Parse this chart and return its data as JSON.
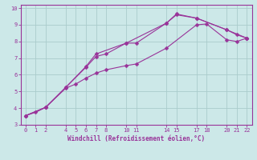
{
  "xlabel": "Windchill (Refroidissement éolien,°C)",
  "background_color": "#cce8e8",
  "grid_color": "#aacccc",
  "line_color": "#993399",
  "spine_color": "#993399",
  "xlim": [
    -0.5,
    22.5
  ],
  "ylim": [
    3.0,
    10.2
  ],
  "xticks": [
    0,
    1,
    2,
    4,
    5,
    6,
    7,
    8,
    10,
    11,
    14,
    15,
    17,
    18,
    20,
    21,
    22
  ],
  "yticks": [
    3,
    4,
    5,
    6,
    7,
    8,
    9,
    10
  ],
  "series": [
    {
      "x": [
        0,
        1,
        2,
        4,
        6,
        7,
        8,
        10,
        11,
        14,
        15,
        17,
        20,
        21,
        22
      ],
      "y": [
        3.55,
        3.75,
        4.05,
        5.25,
        6.45,
        7.1,
        7.25,
        7.9,
        7.9,
        9.1,
        9.6,
        9.4,
        8.7,
        8.4,
        8.2
      ],
      "marker": "D",
      "markersize": 2.5,
      "lw": 0.8
    },
    {
      "x": [
        0,
        2,
        4,
        6,
        7,
        10,
        14,
        15,
        17,
        20,
        22
      ],
      "y": [
        3.55,
        4.05,
        5.25,
        6.5,
        7.25,
        7.9,
        9.1,
        9.65,
        9.4,
        8.7,
        8.2
      ],
      "marker": "D",
      "markersize": 2.5,
      "lw": 0.8
    },
    {
      "x": [
        0,
        2,
        4,
        5,
        6,
        7,
        8,
        10,
        11,
        14,
        17,
        18,
        20,
        21,
        22
      ],
      "y": [
        3.55,
        4.05,
        5.2,
        5.45,
        5.8,
        6.1,
        6.3,
        6.55,
        6.65,
        7.6,
        9.0,
        9.05,
        8.1,
        8.0,
        8.2
      ],
      "marker": "D",
      "markersize": 2.5,
      "lw": 0.8
    }
  ]
}
